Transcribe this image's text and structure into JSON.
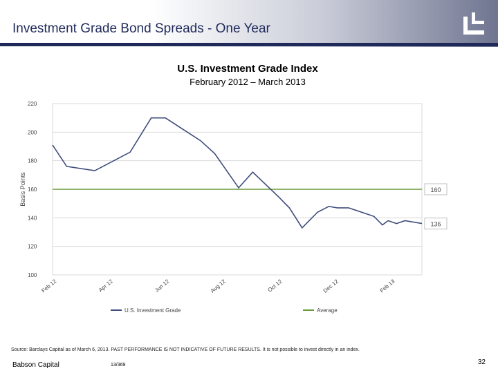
{
  "header": {
    "title": "Investment Grade Bond Spreads - One Year",
    "logo_icon": "babson-logo-icon"
  },
  "colors": {
    "navy": "#1f2a5a",
    "series": "#3e4c7a",
    "average": "#6a9a3a",
    "grid": "#d9d9d9"
  },
  "chart_data": {
    "type": "line",
    "title": "U.S. Investment Grade Index",
    "subtitle": "February 2012 – March 2013",
    "ylabel": "Basis Points",
    "ylim": [
      100,
      220
    ],
    "yticks": [
      "100",
      "120",
      "140",
      "160",
      "180",
      "200",
      "220"
    ],
    "x_range": [
      0,
      13.1
    ],
    "xticks": [
      {
        "label": "Feb 12",
        "x": 0
      },
      {
        "label": "Apr 12",
        "x": 2
      },
      {
        "label": "Jun 12",
        "x": 4
      },
      {
        "label": "Aug 12",
        "x": 6
      },
      {
        "label": "Oct 12",
        "x": 8
      },
      {
        "label": "Dec 12",
        "x": 10
      },
      {
        "label": "Feb 13",
        "x": 12
      }
    ],
    "series": [
      {
        "name": "U.S. Investment Grade",
        "x": [
          0,
          0.5,
          1.5,
          2.75,
          3.5,
          4.0,
          5.25,
          5.75,
          6.6,
          7.1,
          8.0,
          8.4,
          8.85,
          9.4,
          9.8,
          10.1,
          10.5,
          11.1,
          11.4,
          11.7,
          11.9,
          12.2,
          12.5,
          13.1
        ],
        "values": [
          191,
          176,
          173,
          186,
          210,
          210,
          194,
          185,
          161,
          172,
          155,
          147,
          133,
          144,
          148,
          147,
          147,
          143,
          141,
          135,
          138,
          136,
          138,
          136
        ]
      }
    ],
    "average": {
      "name": "Average",
      "value": 160
    },
    "callouts": [
      {
        "label": "160",
        "value": 160
      },
      {
        "label": "136",
        "value": 136
      }
    ],
    "legend": {
      "placement": "bottom"
    }
  },
  "source": "Source:  Barclays Capital as of March 6, 2013.  PAST PERFORMANCE IS NOT INDICATIVE OF FUTURE RESULTS.  It is not possible to invest directly in an index.",
  "footer": {
    "company": "Babson Capital",
    "code": "13/369",
    "page": "32"
  }
}
